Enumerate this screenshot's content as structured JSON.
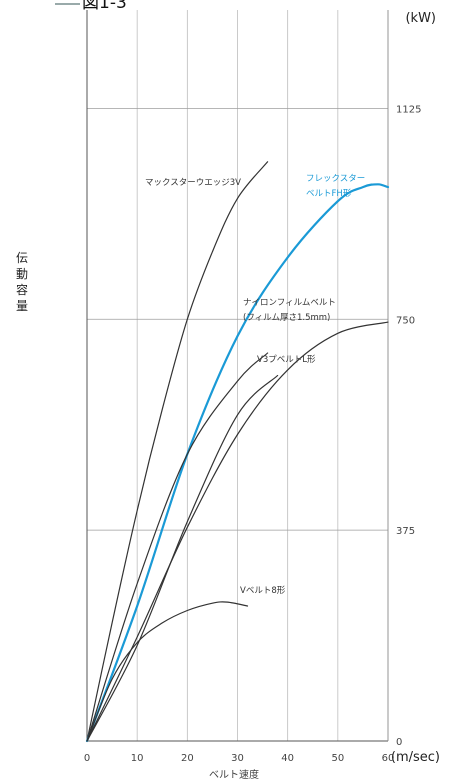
{
  "figure_title": "図1-3",
  "chart_data": {
    "type": "line",
    "title": "",
    "xlabel": "ベルト速度",
    "ylabel": "伝動容量",
    "x_unit": "(m/sec)",
    "y_unit": "(kW)",
    "xlim": [
      0,
      60
    ],
    "ylim": [
      0,
      1300
    ],
    "x_ticks": [
      "0",
      "10",
      "20",
      "30",
      "40",
      "50",
      "60"
    ],
    "y_ticks": [
      "0",
      "375",
      "750",
      "1125"
    ],
    "grid": true,
    "series": [
      {
        "name": "マックスターウエッジ3V",
        "color": "#333333",
        "label_lines": [
          "マックスターウエッジ3V"
        ],
        "x": [
          0,
          5,
          10,
          15,
          20,
          25,
          30,
          36
        ],
        "y": [
          0,
          210,
          410,
          590,
          750,
          870,
          965,
          1030
        ]
      },
      {
        "name": "フレックスターベルトFH形",
        "color": "#1a9ad6",
        "label_lines": [
          "フレックスター",
          "ベルトFH形"
        ],
        "x": [
          0,
          10,
          20,
          30,
          40,
          50,
          55,
          58,
          60
        ],
        "y": [
          0,
          240,
          510,
          720,
          860,
          960,
          985,
          990,
          985
        ]
      },
      {
        "name": "ナイロンフィルムベルト(フィルム厚さ1.5mm)",
        "color": "#333333",
        "label_lines": [
          "ナイロンフィルムベルト",
          "(フィルム厚さ1.5mm)"
        ],
        "x": [
          0,
          10,
          20,
          30,
          40,
          50,
          60
        ],
        "y": [
          0,
          185,
          380,
          545,
          660,
          725,
          745
        ]
      },
      {
        "name": "V3プベルトL形",
        "color": "#333333",
        "label_lines": [
          "V3プベルトL形"
        ],
        "x": [
          0,
          10,
          20,
          30,
          36
        ],
        "y": [
          0,
          280,
          510,
          640,
          690
        ]
      },
      {
        "name": "Vベルト",
        "color": "#333333",
        "label_lines": [],
        "x": [
          0,
          10,
          20,
          30,
          38
        ],
        "y": [
          0,
          170,
          390,
          580,
          650
        ]
      },
      {
        "name": "Vベルト8形",
        "color": "#333333",
        "label_lines": [
          "Vベルト8形"
        ],
        "x": [
          0,
          5,
          10,
          15,
          20,
          25,
          28,
          32
        ],
        "y": [
          0,
          110,
          175,
          210,
          232,
          245,
          247,
          240
        ]
      }
    ]
  }
}
